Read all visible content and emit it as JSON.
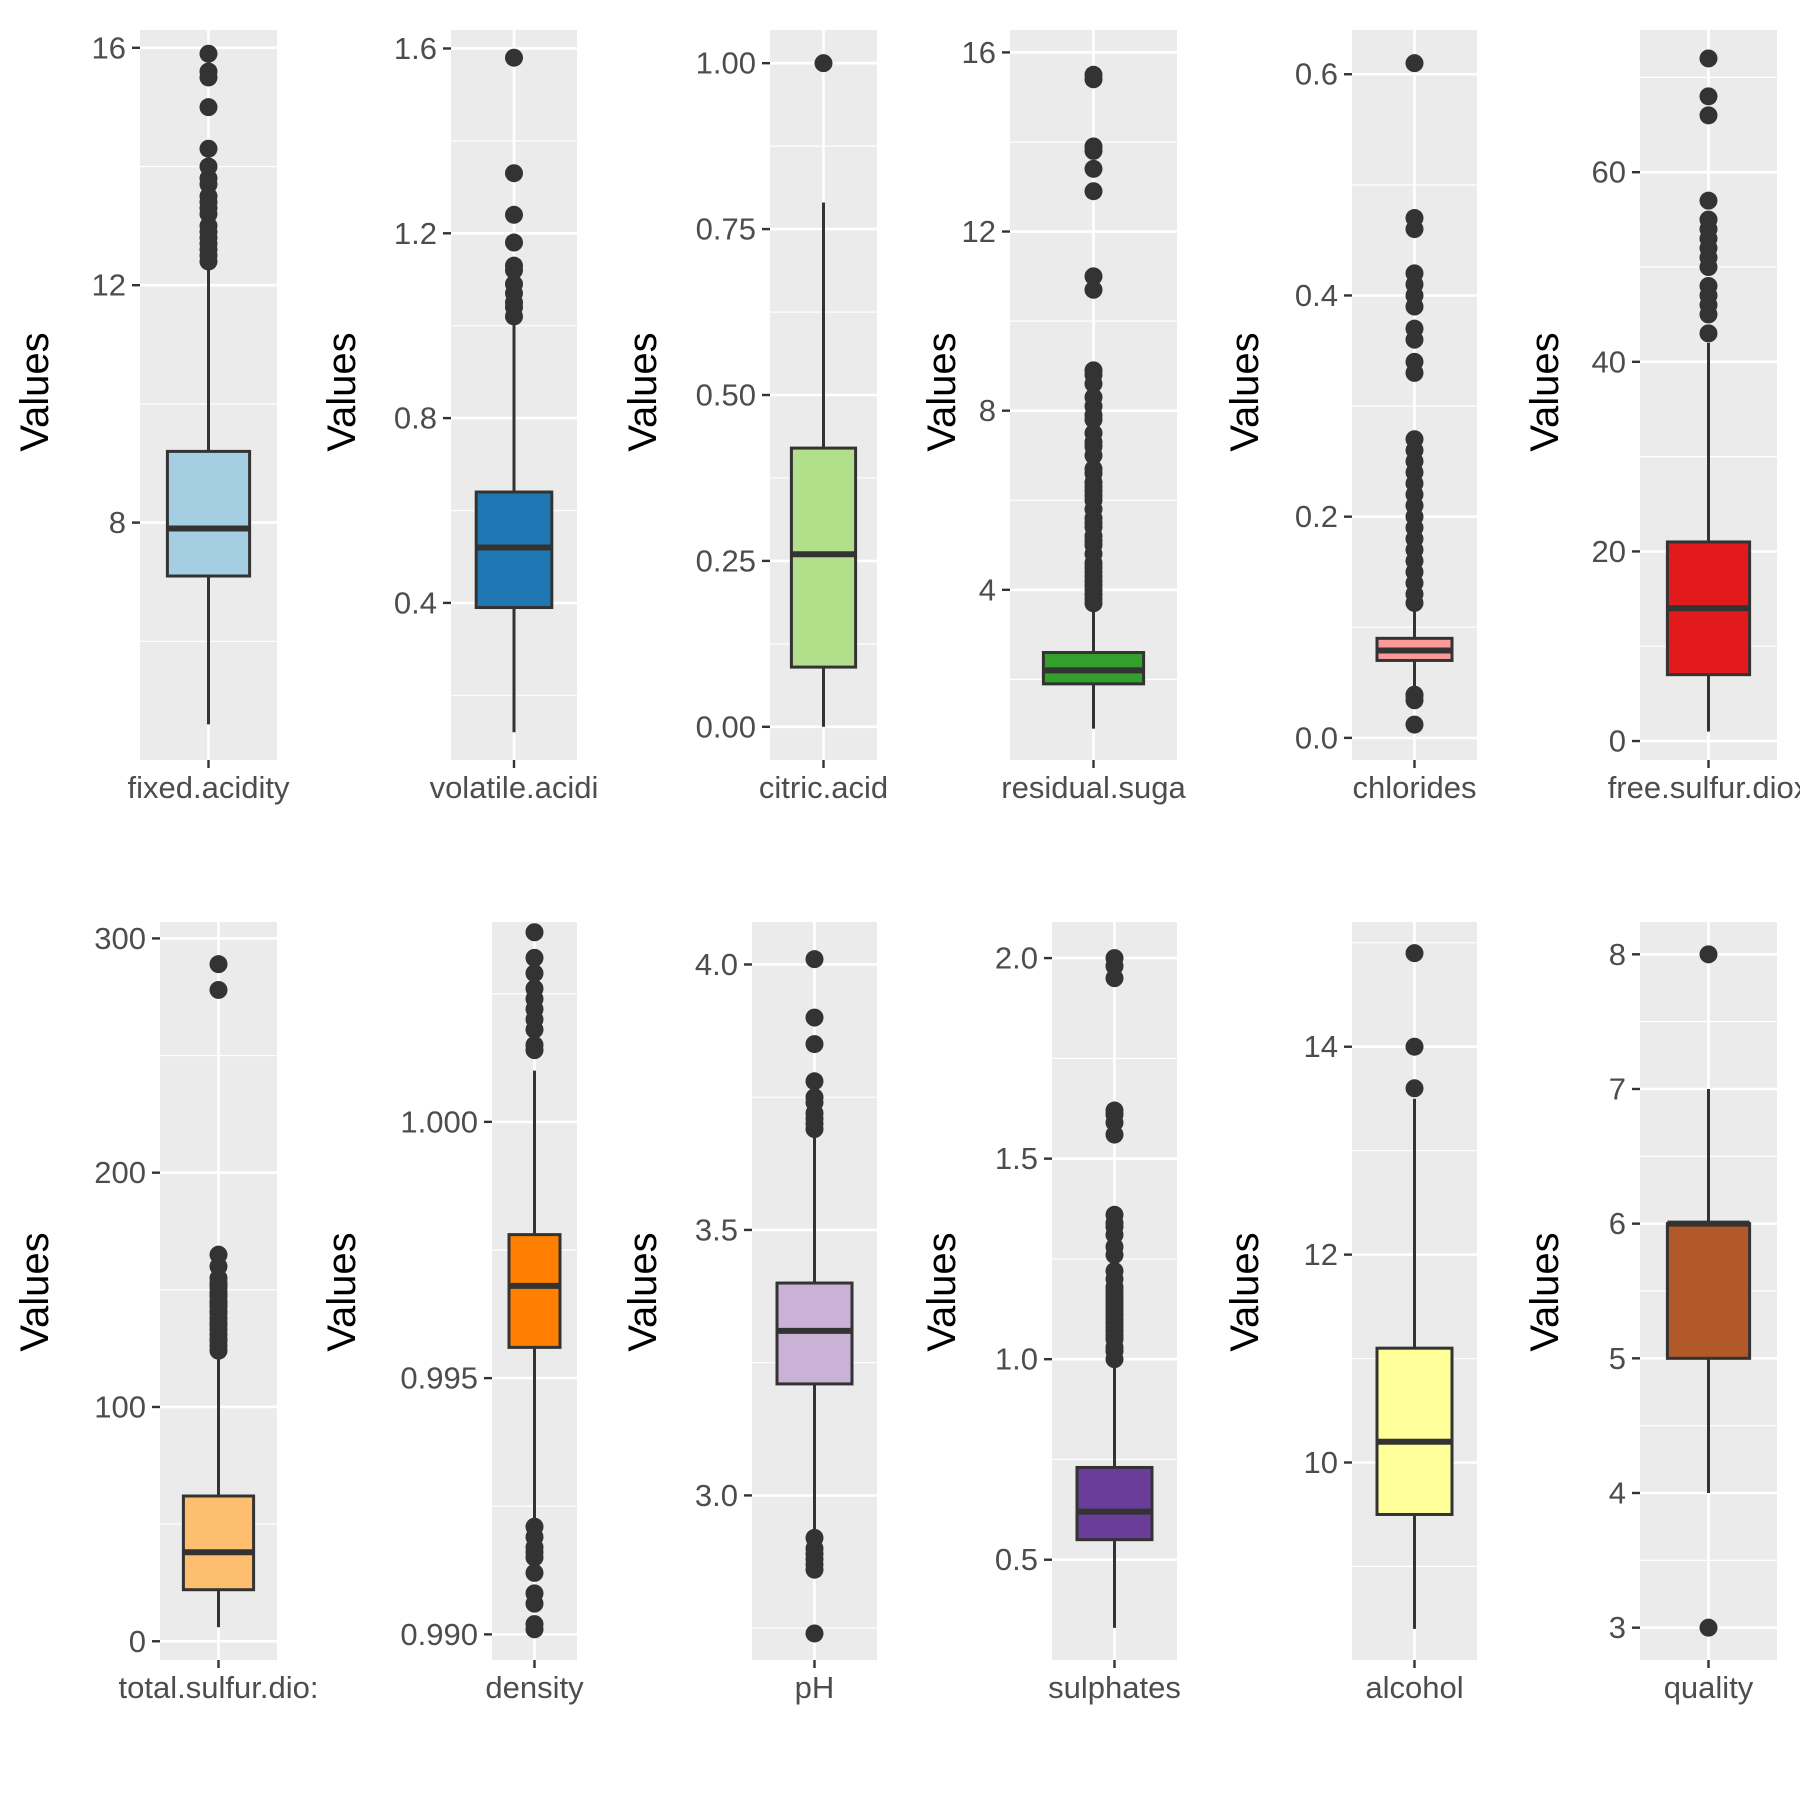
{
  "chart_data": [
    {
      "type": "box",
      "variable": "fixed.acidity",
      "x_tick_label": "fixed.acidity",
      "ylabel": "Values",
      "fill": "#a6cee3",
      "yticks": [
        {
          "v": 8,
          "label": "8"
        },
        {
          "v": 12,
          "label": "12"
        },
        {
          "v": 16,
          "label": "16"
        }
      ],
      "ylim": [
        4.0,
        16.3
      ],
      "whisker_low": 4.6,
      "q1": 7.1,
      "median": 7.9,
      "q3": 9.2,
      "whisker_high": 12.3,
      "outliers": [
        12.4,
        12.5,
        12.6,
        12.7,
        12.8,
        12.9,
        13.0,
        13.2,
        13.3,
        13.4,
        13.5,
        13.7,
        13.8,
        14.0,
        14.3,
        15.0,
        15.5,
        15.6,
        15.9
      ]
    },
    {
      "type": "box",
      "variable": "volatile.acidity",
      "x_tick_label": "volatile.acidi",
      "ylabel": "Values",
      "fill": "#1f78b4",
      "yticks": [
        {
          "v": 0.4,
          "label": "0.4"
        },
        {
          "v": 0.8,
          "label": "0.8"
        },
        {
          "v": 1.2,
          "label": "1.2"
        },
        {
          "v": 1.6,
          "label": "1.6"
        }
      ],
      "ylim": [
        0.06,
        1.64
      ],
      "whisker_low": 0.12,
      "q1": 0.39,
      "median": 0.52,
      "q3": 0.64,
      "whisker_high": 1.01,
      "outliers": [
        1.02,
        1.04,
        1.05,
        1.07,
        1.09,
        1.12,
        1.13,
        1.18,
        1.24,
        1.33,
        1.58
      ]
    },
    {
      "type": "box",
      "variable": "citric.acid",
      "x_tick_label": "citric.acid",
      "ylabel": "Values",
      "fill": "#b2df8a",
      "yticks": [
        {
          "v": 0.0,
          "label": "0.00"
        },
        {
          "v": 0.25,
          "label": "0.25"
        },
        {
          "v": 0.5,
          "label": "0.50"
        },
        {
          "v": 0.75,
          "label": "0.75"
        },
        {
          "v": 1.0,
          "label": "1.00"
        }
      ],
      "ylim": [
        -0.05,
        1.05
      ],
      "whisker_low": 0.0,
      "q1": 0.09,
      "median": 0.26,
      "q3": 0.42,
      "whisker_high": 0.79,
      "outliers": [
        1.0
      ]
    },
    {
      "type": "box",
      "variable": "residual.sugar",
      "x_tick_label": "residual.suga",
      "ylabel": "Values",
      "fill": "#33a02c",
      "yticks": [
        {
          "v": 4,
          "label": "4"
        },
        {
          "v": 8,
          "label": "8"
        },
        {
          "v": 12,
          "label": "12"
        },
        {
          "v": 16,
          "label": "16"
        }
      ],
      "ylim": [
        0.2,
        16.5
      ],
      "whisker_low": 0.9,
      "q1": 1.9,
      "median": 2.2,
      "q3": 2.6,
      "whisker_high": 3.6,
      "outliers": [
        3.7,
        3.8,
        3.9,
        4.0,
        4.1,
        4.2,
        4.3,
        4.4,
        4.5,
        4.6,
        4.8,
        5.0,
        5.1,
        5.2,
        5.4,
        5.5,
        5.6,
        5.8,
        6.0,
        6.1,
        6.2,
        6.3,
        6.4,
        6.6,
        6.7,
        7.0,
        7.2,
        7.3,
        7.5,
        7.8,
        7.9,
        8.1,
        8.3,
        8.6,
        8.8,
        8.9,
        10.7,
        11.0,
        12.9,
        13.4,
        13.8,
        13.9,
        15.4,
        15.5
      ]
    },
    {
      "type": "box",
      "variable": "chlorides",
      "x_tick_label": "chlorides",
      "ylabel": "Values",
      "fill": "#fb9a99",
      "yticks": [
        {
          "v": 0.0,
          "label": "0.0"
        },
        {
          "v": 0.2,
          "label": "0.2"
        },
        {
          "v": 0.4,
          "label": "0.4"
        },
        {
          "v": 0.6,
          "label": "0.6"
        }
      ],
      "ylim": [
        -0.02,
        0.64
      ],
      "whisker_low": 0.042,
      "q1": 0.07,
      "median": 0.079,
      "q3": 0.09,
      "whisker_high": 0.119,
      "outliers": [
        0.012,
        0.034,
        0.038,
        0.039,
        0.122,
        0.13,
        0.14,
        0.15,
        0.16,
        0.17,
        0.18,
        0.19,
        0.2,
        0.21,
        0.22,
        0.23,
        0.24,
        0.25,
        0.26,
        0.27,
        0.33,
        0.34,
        0.36,
        0.37,
        0.39,
        0.4,
        0.41,
        0.42,
        0.46,
        0.47,
        0.61
      ]
    },
    {
      "type": "box",
      "variable": "free.sulfur.dioxide",
      "x_tick_label": "free.sulfur.diox",
      "ylabel": "Values",
      "fill": "#e31a1c",
      "yticks": [
        {
          "v": 0,
          "label": "0"
        },
        {
          "v": 20,
          "label": "20"
        },
        {
          "v": 40,
          "label": "40"
        },
        {
          "v": 60,
          "label": "60"
        }
      ],
      "ylim": [
        -2,
        75
      ],
      "whisker_low": 1,
      "q1": 7,
      "median": 14,
      "q3": 21,
      "whisker_high": 42,
      "outliers": [
        43,
        45,
        46,
        47,
        48,
        50,
        51,
        52,
        53,
        54,
        55,
        57,
        66,
        68,
        72
      ]
    },
    {
      "type": "box",
      "variable": "total.sulfur.dioxide",
      "x_tick_label": "total.sulfur.dio:",
      "ylabel": "Values",
      "fill": "#fdbf6f",
      "yticks": [
        {
          "v": 0,
          "label": "0"
        },
        {
          "v": 100,
          "label": "100"
        },
        {
          "v": 200,
          "label": "200"
        },
        {
          "v": 300,
          "label": "300"
        }
      ],
      "ylim": [
        -8,
        307
      ],
      "whisker_low": 6,
      "q1": 22,
      "median": 38,
      "q3": 62,
      "whisker_high": 122,
      "outliers": [
        124,
        126,
        128,
        129,
        131,
        133,
        135,
        136,
        138,
        140,
        141,
        143,
        144,
        145,
        147,
        148,
        149,
        151,
        152,
        153,
        155,
        160,
        165,
        278,
        289
      ]
    },
    {
      "type": "box",
      "variable": "density",
      "x_tick_label": "density",
      "ylabel": "Values",
      "fill": "#ff7f00",
      "yticks": [
        {
          "v": 0.99,
          "label": "0.990"
        },
        {
          "v": 0.995,
          "label": "0.995"
        },
        {
          "v": 1.0,
          "label": "1.000"
        }
      ],
      "ylim": [
        0.9895,
        1.0039
      ],
      "whisker_low": 0.9922,
      "q1": 0.9956,
      "median": 0.9968,
      "q3": 0.9978,
      "whisker_high": 1.001,
      "outliers": [
        0.9901,
        0.9902,
        0.9906,
        0.9908,
        0.9912,
        0.9915,
        0.9916,
        0.9917,
        0.9919,
        0.9921,
        1.0014,
        1.0015,
        1.0018,
        1.002,
        1.0022,
        1.0024,
        1.0026,
        1.0029,
        1.0032,
        1.0037
      ]
    },
    {
      "type": "box",
      "variable": "pH",
      "x_tick_label": "pH",
      "ylabel": "Values",
      "fill": "#cab2d6",
      "yticks": [
        {
          "v": 3.0,
          "label": "3.0"
        },
        {
          "v": 3.5,
          "label": "3.5"
        },
        {
          "v": 4.0,
          "label": "4.0"
        }
      ],
      "ylim": [
        2.69,
        4.08
      ],
      "whisker_low": 2.93,
      "q1": 3.21,
      "median": 3.31,
      "q3": 3.4,
      "whisker_high": 3.68,
      "outliers": [
        2.74,
        2.86,
        2.87,
        2.88,
        2.89,
        2.9,
        2.92,
        3.69,
        3.7,
        3.71,
        3.72,
        3.74,
        3.75,
        3.78,
        3.85,
        3.9,
        4.01
      ]
    },
    {
      "type": "box",
      "variable": "sulphates",
      "x_tick_label": "sulphates",
      "ylabel": "Values",
      "fill": "#6a3d9a",
      "yticks": [
        {
          "v": 0.5,
          "label": "0.5"
        },
        {
          "v": 1.0,
          "label": "1.0"
        },
        {
          "v": 1.5,
          "label": "1.5"
        },
        {
          "v": 2.0,
          "label": "2.0"
        }
      ],
      "ylim": [
        0.25,
        2.09
      ],
      "whisker_low": 0.33,
      "q1": 0.55,
      "median": 0.62,
      "q3": 0.73,
      "whisker_high": 0.99,
      "outliers": [
        1.0,
        1.02,
        1.03,
        1.05,
        1.06,
        1.07,
        1.08,
        1.09,
        1.1,
        1.11,
        1.12,
        1.13,
        1.14,
        1.15,
        1.16,
        1.17,
        1.18,
        1.2,
        1.22,
        1.26,
        1.28,
        1.31,
        1.33,
        1.34,
        1.36,
        1.56,
        1.59,
        1.61,
        1.62,
        1.95,
        1.98,
        2.0
      ]
    },
    {
      "type": "box",
      "variable": "alcohol",
      "x_tick_label": "alcohol",
      "ylabel": "Values",
      "fill": "#ffff99",
      "yticks": [
        {
          "v": 10,
          "label": "10"
        },
        {
          "v": 12,
          "label": "12"
        },
        {
          "v": 14,
          "label": "14"
        }
      ],
      "ylim": [
        8.1,
        15.2
      ],
      "whisker_low": 8.4,
      "q1": 9.5,
      "median": 10.2,
      "q3": 11.1,
      "whisker_high": 13.5,
      "outliers": [
        13.6,
        14.0,
        14.9
      ]
    },
    {
      "type": "box",
      "variable": "quality",
      "x_tick_label": "quality",
      "ylabel": "Values",
      "fill": "#b15928",
      "yticks": [
        {
          "v": 3,
          "label": "3"
        },
        {
          "v": 4,
          "label": "4"
        },
        {
          "v": 5,
          "label": "5"
        },
        {
          "v": 6,
          "label": "6"
        },
        {
          "v": 7,
          "label": "7"
        },
        {
          "v": 8,
          "label": "8"
        }
      ],
      "ylim": [
        2.76,
        8.24
      ],
      "whisker_low": 4,
      "q1": 5,
      "median": 6,
      "q3": 6,
      "whisker_high": 7,
      "outliers": [
        3,
        8
      ]
    }
  ]
}
